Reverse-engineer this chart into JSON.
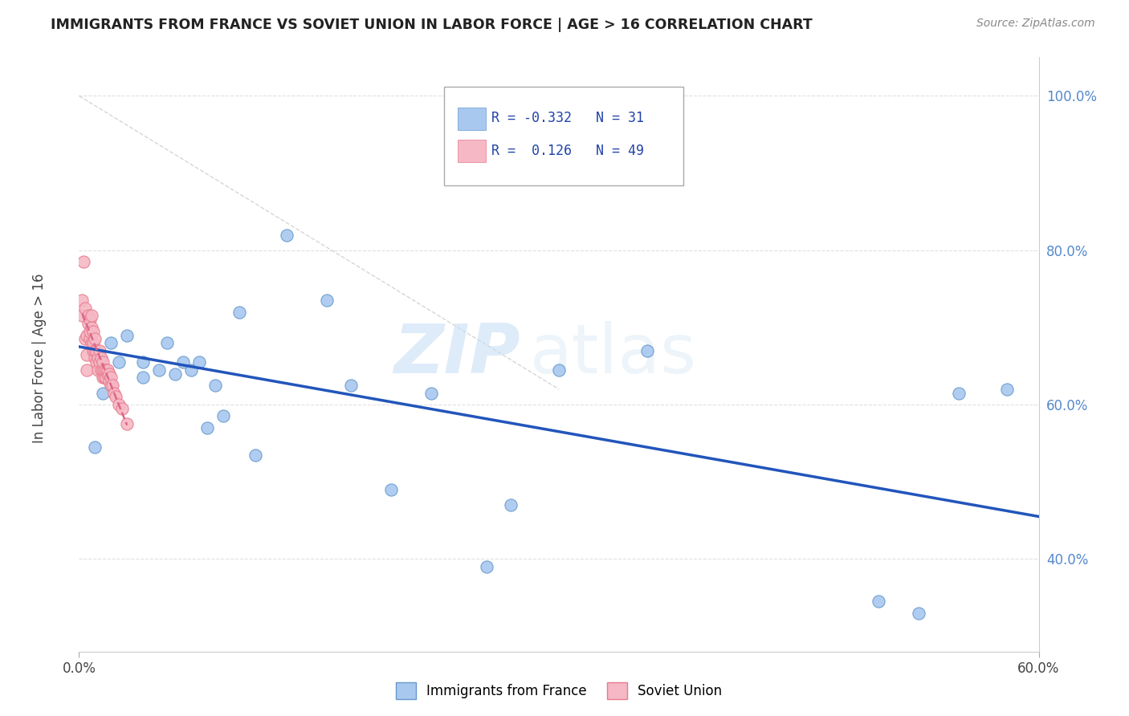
{
  "title": "IMMIGRANTS FROM FRANCE VS SOVIET UNION IN LABOR FORCE | AGE > 16 CORRELATION CHART",
  "source": "Source: ZipAtlas.com",
  "ylabel": "In Labor Force | Age > 16",
  "xlim": [
    0.0,
    0.6
  ],
  "ylim": [
    0.28,
    1.05
  ],
  "xticks": [
    0.0,
    0.6
  ],
  "xticklabels": [
    "0.0%",
    "60.0%"
  ],
  "yticks": [
    0.4,
    0.6,
    0.8,
    1.0
  ],
  "yticklabels": [
    "40.0%",
    "60.0%",
    "80.0%",
    "100.0%"
  ],
  "france_color": "#a8c8f0",
  "france_edge": "#6699cc",
  "soviet_color": "#f5b8c4",
  "soviet_edge": "#e87a8e",
  "france_trend_color": "#2255bb",
  "soviet_trend_color": "#dd6688",
  "diag_color": "#cccccc",
  "legend_france_label": "Immigrants from France",
  "legend_soviet_label": "Soviet Union",
  "R_france": "-0.332",
  "N_france": "31",
  "R_soviet": "0.126",
  "N_soviet": "49",
  "france_points_x": [
    0.01,
    0.015,
    0.02,
    0.025,
    0.03,
    0.04,
    0.04,
    0.05,
    0.055,
    0.06,
    0.065,
    0.07,
    0.075,
    0.08,
    0.085,
    0.09,
    0.1,
    0.11,
    0.13,
    0.155,
    0.17,
    0.195,
    0.22,
    0.255,
    0.27,
    0.3,
    0.355,
    0.5,
    0.525,
    0.55,
    0.58
  ],
  "france_points_y": [
    0.545,
    0.615,
    0.68,
    0.655,
    0.69,
    0.635,
    0.655,
    0.645,
    0.68,
    0.64,
    0.655,
    0.645,
    0.655,
    0.57,
    0.625,
    0.585,
    0.72,
    0.535,
    0.82,
    0.735,
    0.625,
    0.49,
    0.615,
    0.39,
    0.47,
    0.645,
    0.67,
    0.345,
    0.33,
    0.615,
    0.62
  ],
  "soviet_points_x": [
    0.002,
    0.002,
    0.003,
    0.004,
    0.004,
    0.005,
    0.005,
    0.005,
    0.006,
    0.006,
    0.007,
    0.007,
    0.007,
    0.008,
    0.008,
    0.008,
    0.009,
    0.009,
    0.009,
    0.01,
    0.01,
    0.01,
    0.011,
    0.011,
    0.012,
    0.012,
    0.013,
    0.013,
    0.014,
    0.014,
    0.015,
    0.015,
    0.015,
    0.016,
    0.016,
    0.017,
    0.017,
    0.018,
    0.018,
    0.019,
    0.019,
    0.02,
    0.02,
    0.021,
    0.022,
    0.023,
    0.025,
    0.027,
    0.03
  ],
  "soviet_points_y": [
    0.715,
    0.735,
    0.785,
    0.685,
    0.725,
    0.645,
    0.665,
    0.69,
    0.705,
    0.715,
    0.685,
    0.695,
    0.71,
    0.68,
    0.7,
    0.715,
    0.67,
    0.68,
    0.695,
    0.66,
    0.67,
    0.685,
    0.655,
    0.67,
    0.645,
    0.66,
    0.655,
    0.67,
    0.645,
    0.66,
    0.635,
    0.645,
    0.655,
    0.635,
    0.645,
    0.635,
    0.645,
    0.64,
    0.645,
    0.63,
    0.64,
    0.625,
    0.635,
    0.625,
    0.615,
    0.61,
    0.6,
    0.595,
    0.575
  ],
  "france_trend_x": [
    0.0,
    0.6
  ],
  "france_trend_y": [
    0.675,
    0.455
  ],
  "watermark_zip": "ZIP",
  "watermark_atlas": "atlas",
  "background_color": "#ffffff",
  "grid_color": "#e0e0e0",
  "tick_color": "#5588cc",
  "ylabel_color": "#444444"
}
